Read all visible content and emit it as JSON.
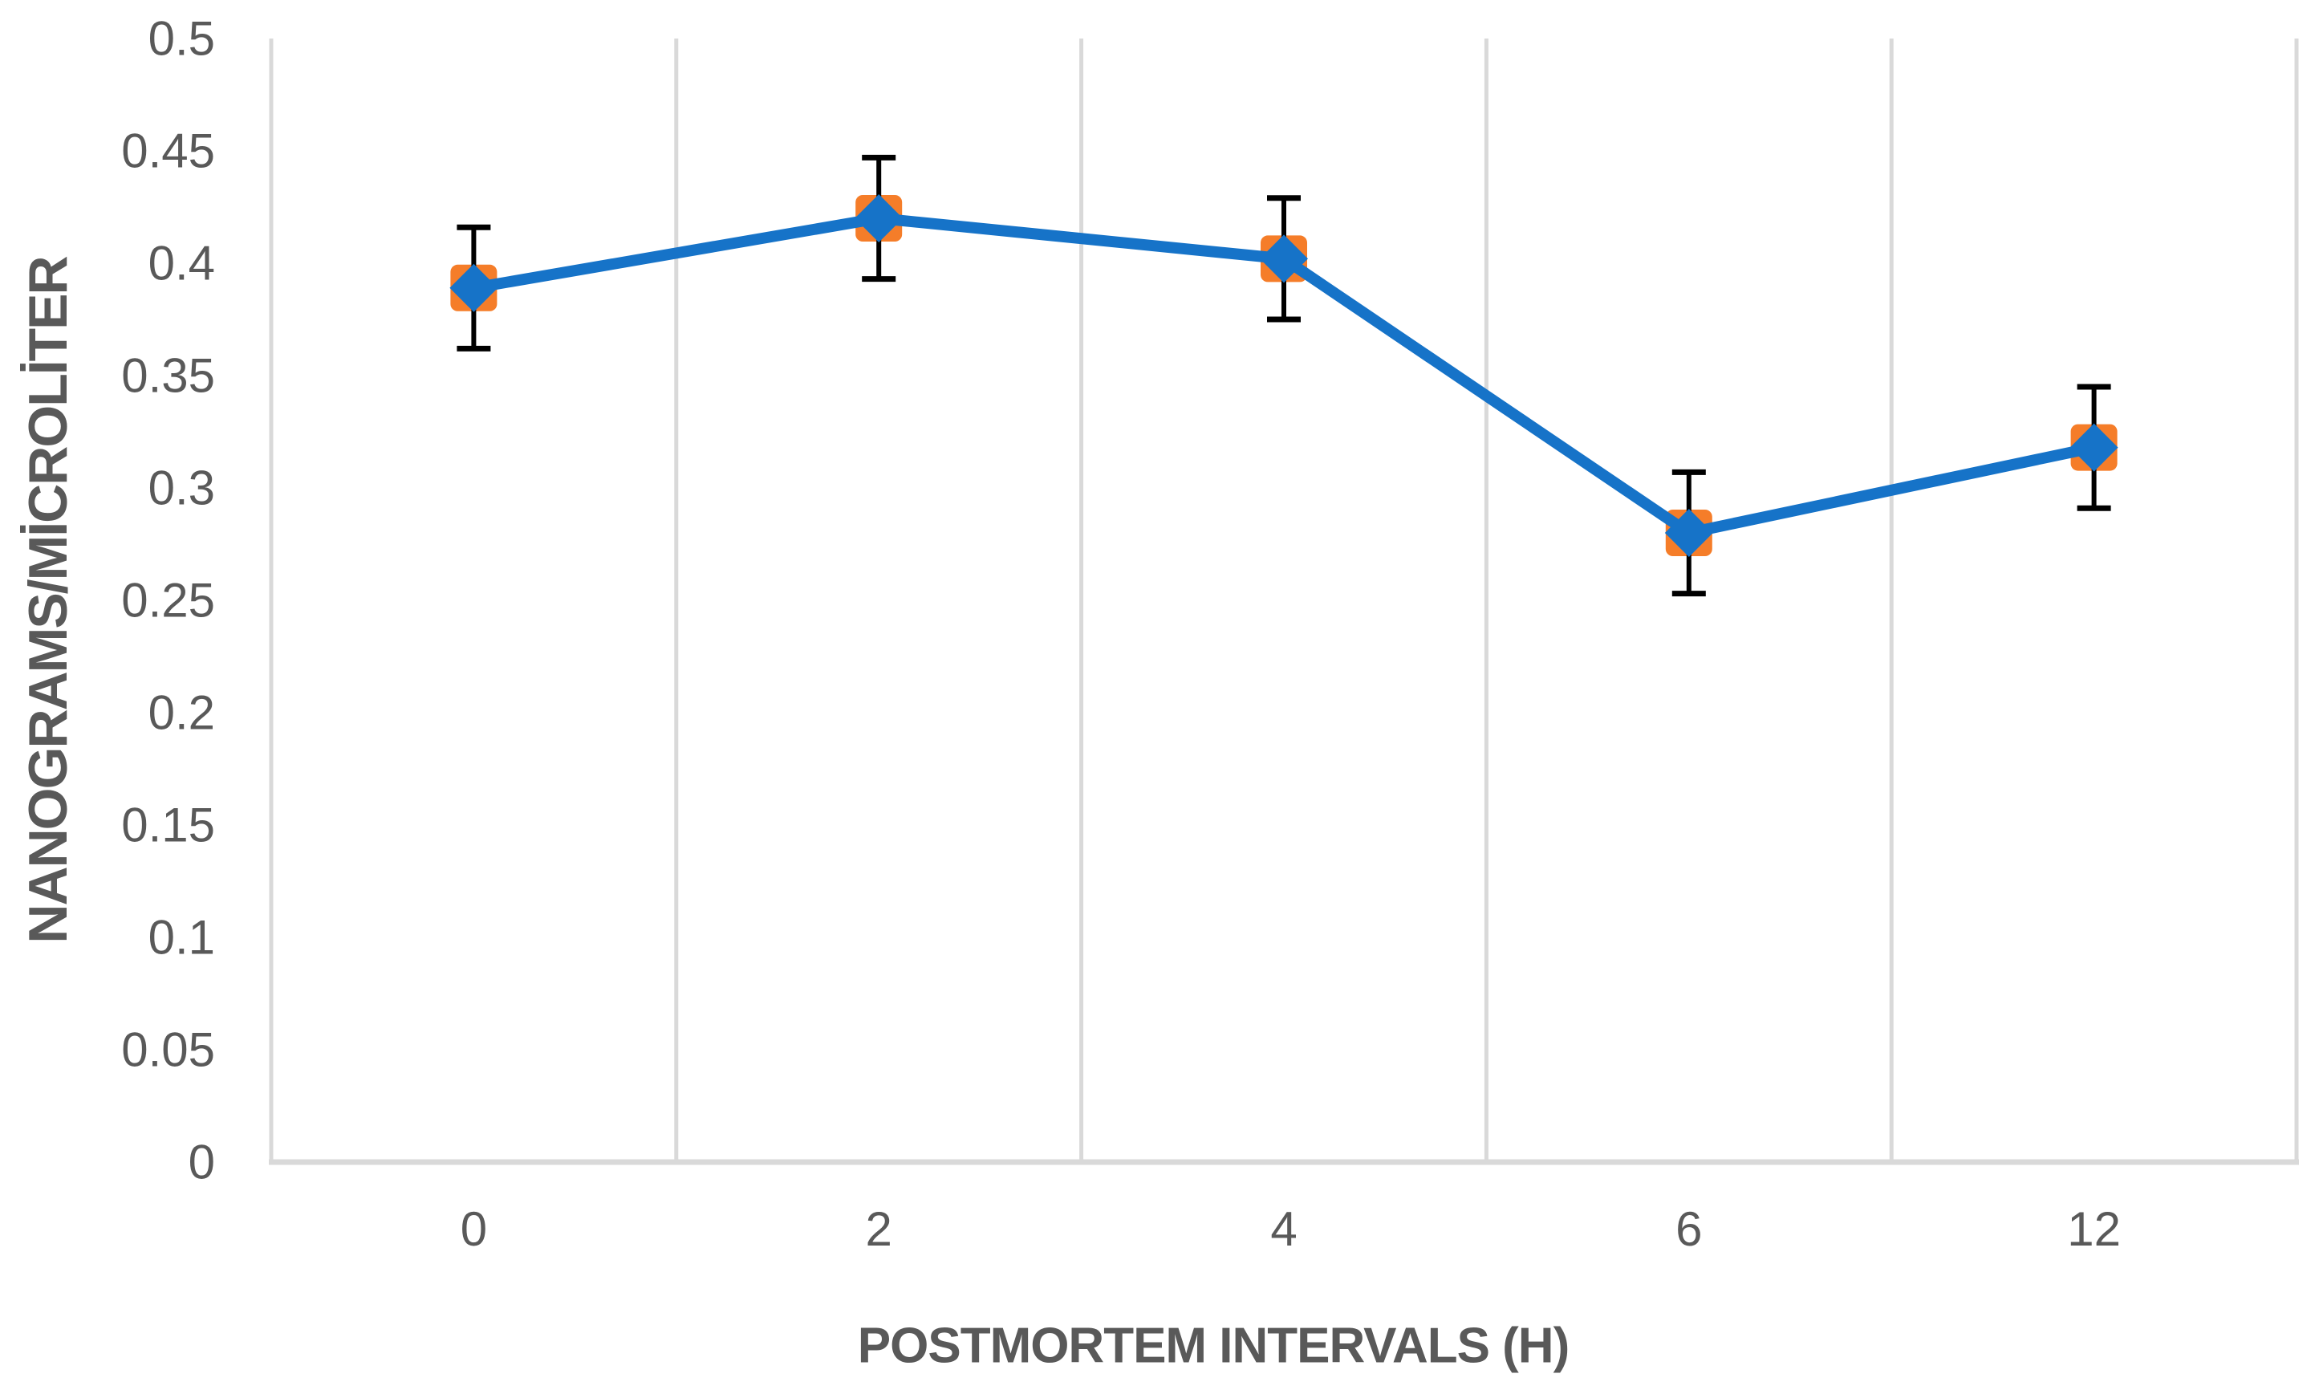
{
  "chart_data": {
    "type": "line",
    "title": "",
    "categories": [
      "0",
      "2",
      "4",
      "6",
      "12"
    ],
    "series": [
      {
        "values": [
          0.389,
          0.42,
          0.402,
          0.28,
          0.318
        ],
        "error_bars": [
          0.027,
          0.027,
          0.027,
          0.027,
          0.027
        ],
        "marker": "diamond-on-square"
      }
    ],
    "xlabel": "POSTMORTEM INTERVALS (H)",
    "ylabel": "NANOGRAMS/MİCROLİTER",
    "y_ticks": [
      "0",
      "0.05",
      "0.1",
      "0.15",
      "0.2",
      "0.25",
      "0.3",
      "0.35",
      "0.4",
      "0.45",
      "0.5"
    ],
    "ylim": [
      0,
      0.5
    ],
    "grid": "vertical-only",
    "legend_position": "none",
    "colors": {
      "line": "#1673C8",
      "marker_diamond": "#1673C8",
      "marker_square": "#F57D29",
      "error_bar": "#000000",
      "gridline": "#D9D9D9",
      "axis_line": "#D9D9D9",
      "text": "#595959"
    }
  }
}
